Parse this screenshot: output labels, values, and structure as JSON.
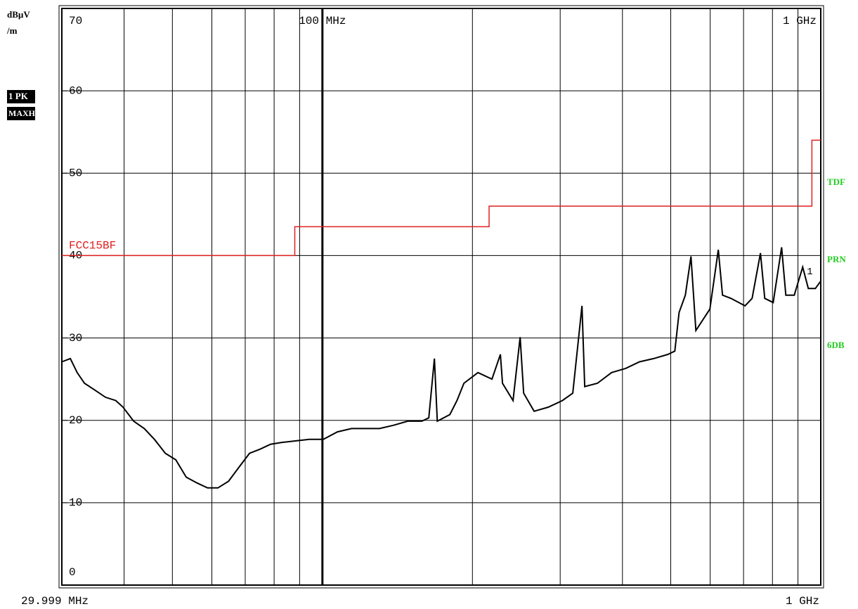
{
  "chart_data": {
    "type": "line",
    "xscale": "log",
    "y_unit": "dBµV",
    "y_unit_2": "/m",
    "trace_labels": [
      "1 PK",
      "MAXH"
    ],
    "side_labels": [
      "TDF",
      "PRN",
      "6DB"
    ],
    "side_label_color": "#22cc22",
    "marker_label": "1",
    "xlim": [
      29.999,
      1000
    ],
    "xlim_labels": [
      "29.999 MHz",
      "1 GHz"
    ],
    "xticks": [
      {
        "value": 100,
        "label": "100 MHz"
      },
      {
        "value": 1000,
        "label": "1 GHz"
      }
    ],
    "xgrid": [
      40,
      50,
      60,
      70,
      80,
      90,
      100,
      200,
      300,
      400,
      500,
      600,
      700,
      800,
      900
    ],
    "ylim": [
      0,
      70
    ],
    "yticks": [
      0,
      10,
      20,
      30,
      40,
      50,
      60,
      70
    ],
    "grid": true,
    "trace": {
      "color": "#000000",
      "x": [
        30.0,
        31.2,
        32.2,
        33.3,
        34.9,
        36.7,
        38.5,
        39.8,
        41.8,
        43.9,
        46.0,
        48.4,
        50.8,
        53.3,
        56.0,
        58.8,
        61.7,
        64.8,
        68.0,
        71.4,
        75.0,
        78.7,
        82.7,
        88.2,
        94.1,
        100.4,
        107.2,
        114.4,
        122.0,
        130.2,
        139.0,
        148.3,
        158.3,
        163.5,
        167.8,
        170.0,
        180.2,
        186.2,
        192.3,
        205.2,
        218.9,
        227.6,
        229.8,
        241.3,
        249.3,
        253.4,
        266.0,
        283.9,
        303.0,
        318.0,
        331.8,
        336.0,
        356.4,
        380.4,
        405.9,
        432.9,
        462.0,
        493.2,
        509.4,
        519.6,
        534.9,
        549.0,
        561.6,
        579.9,
        599.1,
        622.8,
        635.1,
        660.3,
        704.7,
        728.1,
        756.9,
        771.9,
        802.8,
        834.6,
        851.1,
        884.7,
        919.8,
        944.1,
        975.3,
        1000
      ],
      "values": [
        27.1,
        27.5,
        25.8,
        24.5,
        23.7,
        22.8,
        22.4,
        21.6,
        19.9,
        19.0,
        17.7,
        16.0,
        15.2,
        13.1,
        12.4,
        11.8,
        11.8,
        12.6,
        14.3,
        16.0,
        16.5,
        17.1,
        17.3,
        17.5,
        17.7,
        17.7,
        18.6,
        19.0,
        19.0,
        19.0,
        19.4,
        19.9,
        19.9,
        20.3,
        27.5,
        19.9,
        20.7,
        22.4,
        24.5,
        25.8,
        25.0,
        28.0,
        24.5,
        22.4,
        30.1,
        23.3,
        21.1,
        21.6,
        22.4,
        23.3,
        33.9,
        24.1,
        24.5,
        25.8,
        26.3,
        27.1,
        27.5,
        28.0,
        28.4,
        33.1,
        35.2,
        39.9,
        30.9,
        32.2,
        33.5,
        40.7,
        35.2,
        34.8,
        33.9,
        34.8,
        40.3,
        34.8,
        34.3,
        41.0,
        35.2,
        35.2,
        38.6,
        36.0,
        36.0,
        36.9
      ]
    },
    "limit_line": {
      "name": "FCC15BF",
      "color": "#e02020",
      "x": [
        29.999,
        88,
        88,
        216,
        216,
        960,
        960,
        1000
      ],
      "values": [
        40,
        40,
        43.5,
        43.5,
        46,
        46,
        54,
        54
      ]
    }
  }
}
